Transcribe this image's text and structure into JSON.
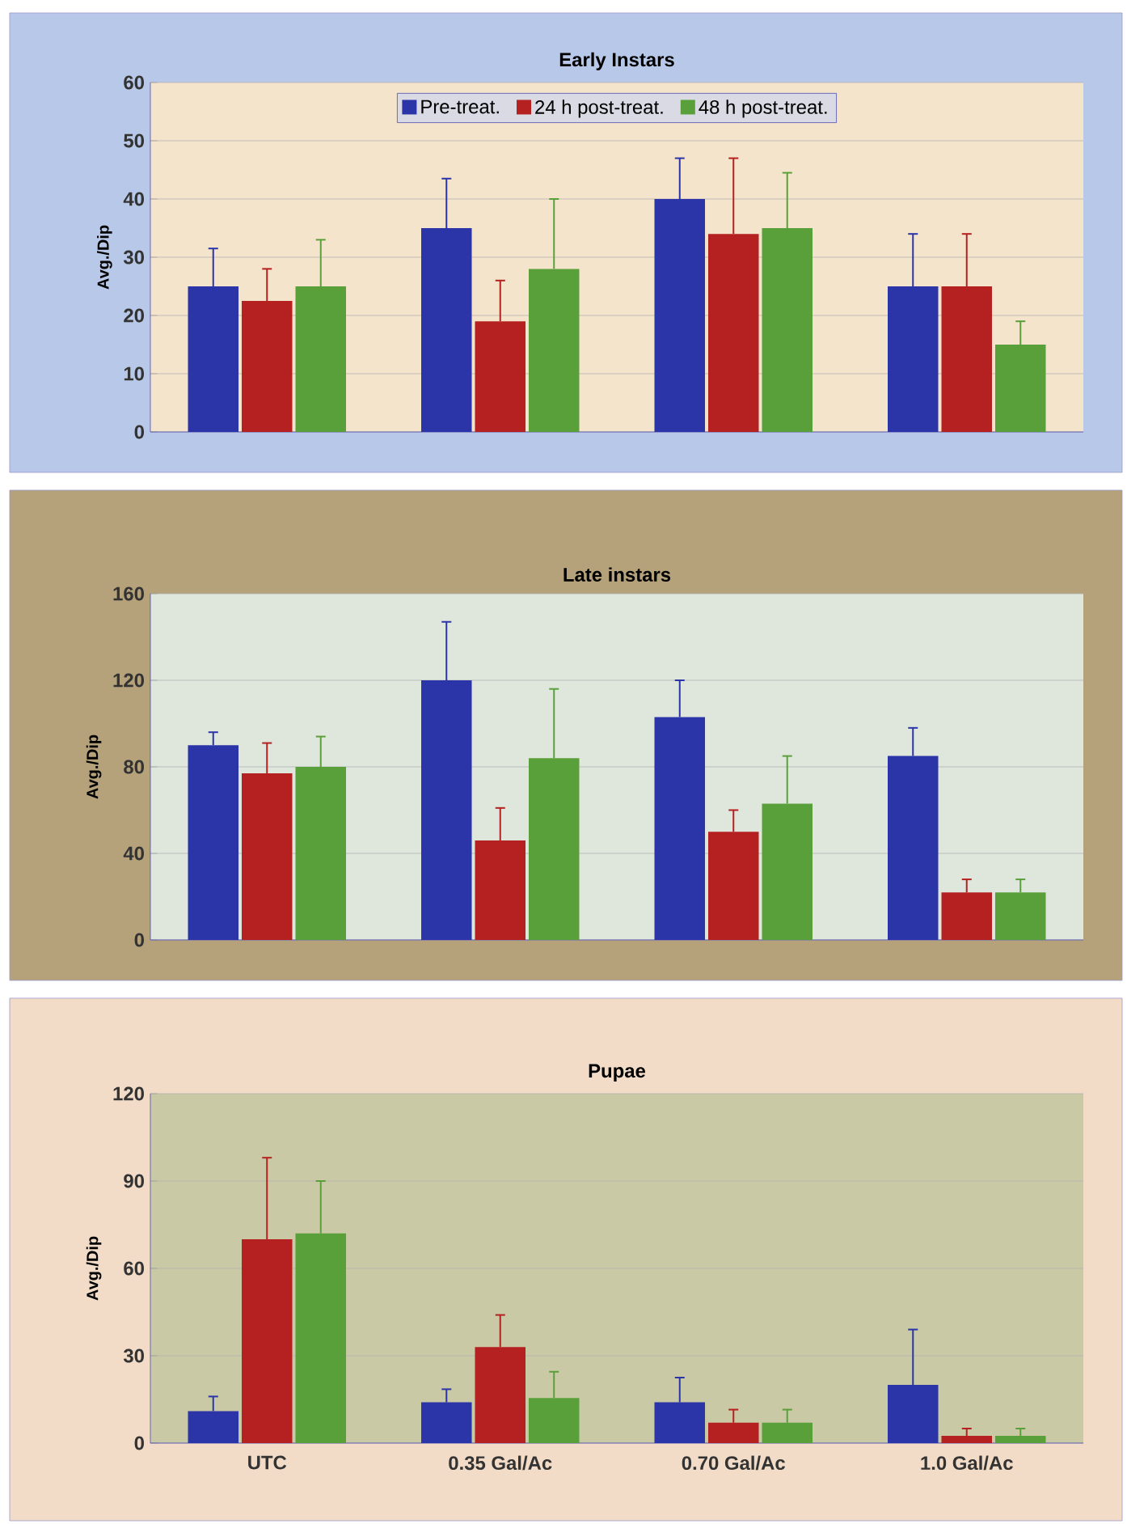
{
  "chart_data": [
    {
      "type": "bar",
      "title": "Early Instars",
      "ylabel": "Avg./Dip",
      "categories": [
        null,
        null,
        null,
        null
      ],
      "ylim": [
        0,
        60
      ],
      "yticks": [
        0,
        10,
        20,
        30,
        40,
        50,
        60
      ],
      "grid": "y",
      "legend": "top",
      "series": [
        {
          "name": "Pre-treat.",
          "color": "#2b35a8",
          "values": [
            25,
            35,
            40,
            25
          ],
          "errors": [
            [
              25,
              31.5
            ],
            [
              35,
              43.5
            ],
            [
              40,
              47
            ],
            [
              25,
              34
            ]
          ]
        },
        {
          "name": "24 h post-treat.",
          "color": "#b52020",
          "values": [
            22.5,
            19,
            34,
            25
          ],
          "errors": [
            [
              22.5,
              28
            ],
            [
              19,
              26
            ],
            [
              34,
              47
            ],
            [
              25,
              34
            ]
          ]
        },
        {
          "name": "48 h post-treat.",
          "color": "#5aa03a",
          "values": [
            25,
            28,
            35,
            15
          ],
          "errors": [
            [
              25,
              33
            ],
            [
              28,
              40
            ],
            [
              35,
              44.5
            ],
            [
              15,
              19
            ]
          ]
        }
      ]
    },
    {
      "type": "bar",
      "title": "Late instars",
      "ylabel": "Avg./Dip",
      "categories": [
        null,
        null,
        null,
        null
      ],
      "ylim": [
        0,
        160
      ],
      "yticks": [
        0,
        40,
        80,
        120,
        160
      ],
      "grid": "y",
      "series": [
        {
          "color": "#2b35a8",
          "values": [
            90,
            120,
            103,
            85
          ],
          "errors": [
            [
              90,
              96
            ],
            [
              120,
              147
            ],
            [
              103,
              120
            ],
            [
              85,
              98
            ]
          ]
        },
        {
          "color": "#b52020",
          "values": [
            77,
            46,
            50,
            22
          ],
          "errors": [
            [
              77,
              91
            ],
            [
              46,
              61
            ],
            [
              50,
              60
            ],
            [
              22,
              28
            ]
          ]
        },
        {
          "color": "#5aa03a",
          "values": [
            80,
            84,
            63,
            22
          ],
          "errors": [
            [
              80,
              94
            ],
            [
              84,
              116
            ],
            [
              63,
              85
            ],
            [
              22,
              28
            ]
          ]
        }
      ]
    },
    {
      "type": "bar",
      "title": "Pupae",
      "ylabel": "Avg./Dip",
      "categories": [
        "UTC",
        "0.35 Gal/Ac",
        "0.70 Gal/Ac",
        "1.0 Gal/Ac"
      ],
      "ylim": [
        0,
        120
      ],
      "yticks": [
        0,
        30,
        60,
        90,
        120
      ],
      "grid": "y",
      "series": [
        {
          "color": "#2b35a8",
          "values": [
            11,
            14,
            14,
            20
          ],
          "errors": [
            [
              11,
              16
            ],
            [
              14,
              18.5
            ],
            [
              14,
              22.5
            ],
            [
              20,
              39
            ]
          ]
        },
        {
          "color": "#b52020",
          "values": [
            70,
            33,
            7,
            2.5
          ],
          "errors": [
            [
              70,
              98
            ],
            [
              33,
              44
            ],
            [
              7,
              11.5
            ],
            [
              2.5,
              5
            ]
          ]
        },
        {
          "color": "#5aa03a",
          "values": [
            72,
            15.5,
            7,
            2.5
          ],
          "errors": [
            [
              72,
              90
            ],
            [
              15.5,
              24.5
            ],
            [
              7,
              11.5
            ],
            [
              2.5,
              5
            ]
          ]
        }
      ]
    }
  ]
}
